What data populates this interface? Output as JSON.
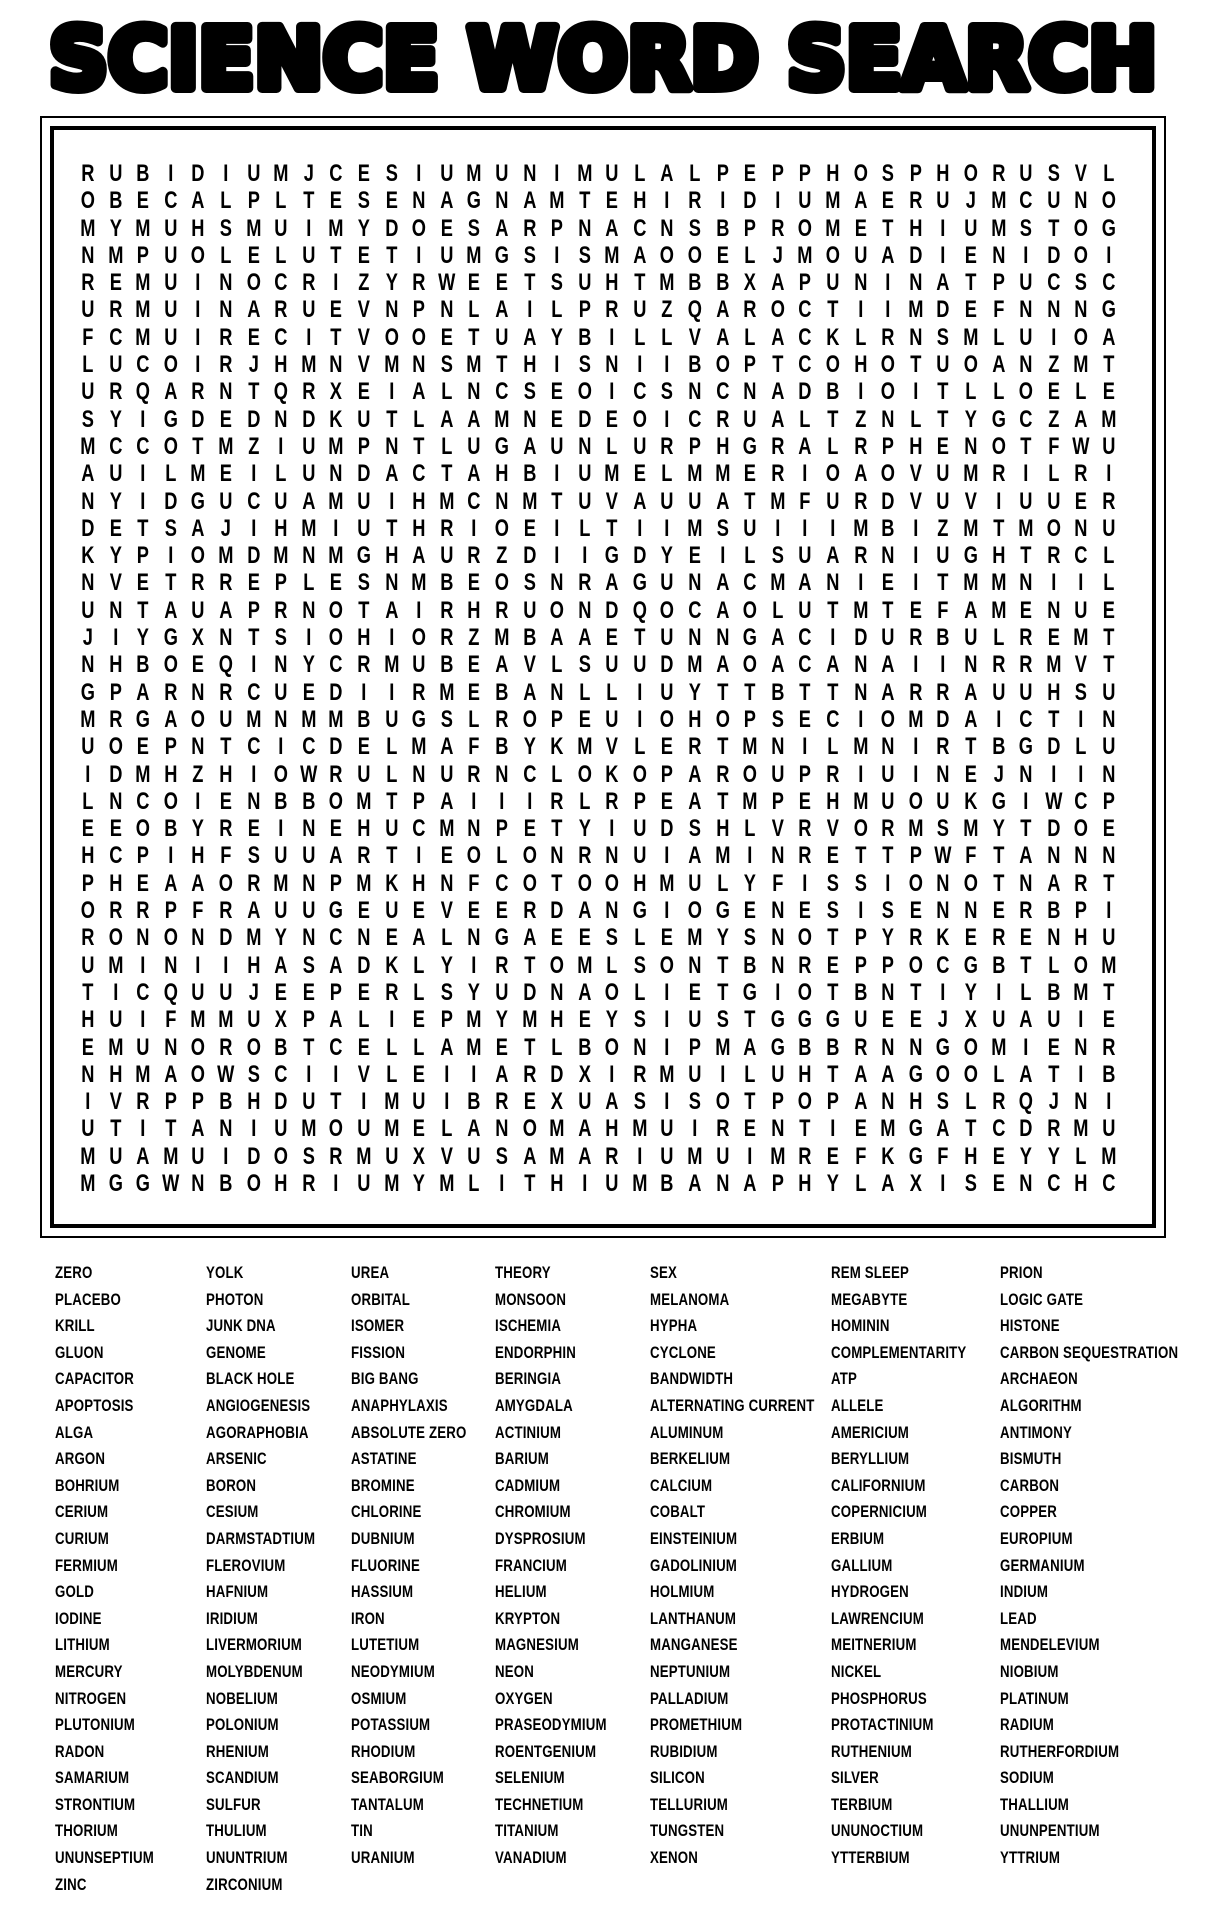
{
  "title": "SCIENCE WORD SEARCH",
  "grid": {
    "rows": [
      "RUBIDIUMJCESIUMUNIMULALPEPPHOSPHORUSVL",
      "OBECALPLTESENAGNAMTEHIRIDIUMAERUJMCUNO",
      "MYMUHSMUIMYDOESARPNACNSBPROMETHIUMSTOG",
      "NMPUOLELUTETIUMGSISMAOOELJMOUADIENIDOI",
      "REMUINOCRIZYRWEETSUHTMBBXAPUNINATPUCSC",
      "URMUINARUEVNPNLAILPRUZQAROCTIIMDEFNNNG",
      "FCMUIRECITVOOETUAYBILLVALACKLRNSMLUIOA",
      "LUCOIRJHMNVMNSMTHISNIIBOPTCOHOTUOANZMT",
      "URQARNTQRXEIALNCSEOICSNCNADBIOITLLOELE",
      "SYIGDEDNDKUTLAAMNEDEOICRUALTZNLTYGCZAM",
      "MCCOTMZIUMPNTLUGAUNLURPHGRALRPHENOTFWU",
      "AUILMEILUNDACTAHBIUMELMMERIOAOVUMRILRI",
      "NYIDGUCUAMUIHMCNMTUVAUUATMFURDVUVIUUER",
      "DETSAJIHMIUTHRIOEILTIIMSUIIIMBIZMTMONU",
      "KYPIOMDMNMGHAURZDIIGDYEILSUARNIUGHTRCL",
      "NVETRREPLESNMBEOSNRAGUNACMANIEITMMNIIL",
      "UNTAUAPRNOTAIRHRUONDQOCAOLUTMTEFAMENUE",
      "JIYGXNTSIOHIORZMBAAETUNNGACIDURBULREMT",
      "NHBOEQINYCRMUBEAVLSUUDMAOACANAIINRRMVT",
      "GPARNRCUEDIIRMEBANLLIUYTTBTTNARRAUUHSU",
      "MRGAOUMNMMBUGSLROPEUIOHOPSECIOMDAICTIN",
      "UOEPNTCICDELMAFBYKMVLERTMNILMNIRTBGDLU",
      "IDMHZHIOWRULNURNCLOKOPAROUPRIUINEJNIIN",
      "LNCOIENBBOMTPAIIIRLRPEATMPEHMUOUKGIWCP",
      "EEOBYREINEHUCMNPETYIUDSHLVRVORMSMYTDOE",
      "HCPIHFSUUARTIEOLONRNUIAMINRETTPWFTANNN",
      "PHEAAORMNPMKHNFCOTOOHMULYFISSIONOTNART",
      "ORRPFRAUUGEUEVEERDANGIOGENESISENNERBPI",
      "RONONDMYNCNEALNGAEESLEMYSNOTPYRKERENHU",
      "UMINIIHASADKLYIRTOMLSONTBNREPPOCGBTLOM",
      "TICQUUJEEPERLSYUDNAOLIETGIOTBNTIYILBMT",
      "HUIFMMUXPALIEPMYMHEYSIUSTGGGUEEJXUAUIE",
      "EMUNOROBTCELLAMETLBONIPMAGBBRNNGOMIENR",
      "NHMAOWSCIIVLEIIARDXIRMUILUHTAAGOOLATIB",
      "IVRPPBHDUTIMUIBREXUASISOTPOPANHSLRQJNI",
      "UTITANIUMOUMELANOMAHMUIRENTIEMGATCDRMU",
      "MUAMUIDOSRMUXVUSAMARIUMUIMREFKGFHEYYLM",
      "MGGWNBOHRIUMYMLITHIUMBANAPHYLAXISENCHC"
    ]
  },
  "word_list": {
    "columns": [
      [
        "ZERO",
        "PLACEBO",
        "KRILL",
        "GLUON",
        "CAPACITOR",
        "APOPTOSIS",
        "ALGA",
        "ARGON",
        "BOHRIUM",
        "CERIUM",
        "CURIUM",
        "FERMIUM",
        "GOLD",
        "IODINE",
        "LITHIUM",
        "MERCURY",
        "NITROGEN",
        "PLUTONIUM",
        "RADON",
        "SAMARIUM",
        "STRONTIUM",
        "THORIUM",
        "UNUNSEPTIUM",
        "ZINC"
      ],
      [
        "YOLK",
        "PHOTON",
        "JUNK DNA",
        "GENOME",
        "BLACK HOLE",
        "ANGIOGENESIS",
        "AGORAPHOBIA",
        "ARSENIC",
        "BORON",
        "CESIUM",
        "DARMSTADTIUM",
        "FLEROVIUM",
        "HAFNIUM",
        "IRIDIUM",
        "LIVERMORIUM",
        "MOLYBDENUM",
        "NOBELIUM",
        "POLONIUM",
        "RHENIUM",
        "SCANDIUM",
        "SULFUR",
        "THULIUM",
        "UNUNTRIUM",
        "ZIRCONIUM"
      ],
      [
        "UREA",
        "ORBITAL",
        "ISOMER",
        "FISSION",
        "BIG BANG",
        "ANAPHYLAXIS",
        "ABSOLUTE ZERO",
        "ASTATINE",
        "BROMINE",
        "CHLORINE",
        "DUBNIUM",
        "FLUORINE",
        "HASSIUM",
        "IRON",
        "LUTETIUM",
        "NEODYMIUM",
        "OSMIUM",
        "POTASSIUM",
        "RHODIUM",
        "SEABORGIUM",
        "TANTALUM",
        "TIN",
        "URANIUM"
      ],
      [
        "THEORY",
        "MONSOON",
        "ISCHEMIA",
        "ENDORPHIN",
        "BERINGIA",
        "AMYGDALA",
        "ACTINIUM",
        "BARIUM",
        "CADMIUM",
        "CHROMIUM",
        "DYSPROSIUM",
        "FRANCIUM",
        "HELIUM",
        "KRYPTON",
        "MAGNESIUM",
        "NEON",
        "OXYGEN",
        "PRASEODYMIUM",
        "ROENTGENIUM",
        "SELENIUM",
        "TECHNETIUM",
        "TITANIUM",
        "VANADIUM"
      ],
      [
        "SEX",
        "MELANOMA",
        "HYPHA",
        "CYCLONE",
        "BANDWIDTH",
        "ALTERNATING CURRENT",
        "ALUMINUM",
        "BERKELIUM",
        "CALCIUM",
        "COBALT",
        "EINSTEINIUM",
        "GADOLINIUM",
        "HOLMIUM",
        "LANTHANUM",
        "MANGANESE",
        "NEPTUNIUM",
        "PALLADIUM",
        "PROMETHIUM",
        "RUBIDIUM",
        "SILICON",
        "TELLURIUM",
        "TUNGSTEN",
        "XENON"
      ],
      [
        "REM SLEEP",
        "MEGABYTE",
        "HOMININ",
        "COMPLEMENTARITY",
        "ATP",
        "ALLELE",
        "AMERICIUM",
        "BERYLLIUM",
        "CALIFORNIUM",
        "COPERNICIUM",
        "ERBIUM",
        "GALLIUM",
        "HYDROGEN",
        "LAWRENCIUM",
        "MEITNERIUM",
        "NICKEL",
        "PHOSPHORUS",
        "PROTACTINIUM",
        "RUTHENIUM",
        "SILVER",
        "TERBIUM",
        "UNUNOCTIUM",
        "YTTERBIUM"
      ],
      [
        "PRION",
        "LOGIC GATE",
        "HISTONE",
        "CARBON SEQUESTRATION",
        "ARCHAEON",
        "ALGORITHM",
        "ANTIMONY",
        "BISMUTH",
        "CARBON",
        "COPPER",
        "EUROPIUM",
        "GERMANIUM",
        "INDIUM",
        "LEAD",
        "MENDELEVIUM",
        "NIOBIUM",
        "PLATINUM",
        "RADIUM",
        "RUTHERFORDIUM",
        "SODIUM",
        "THALLIUM",
        "UNUNPENTIUM",
        "YTTRIUM"
      ]
    ]
  },
  "colors": {
    "ink": "#000000",
    "background": "#ffffff"
  }
}
